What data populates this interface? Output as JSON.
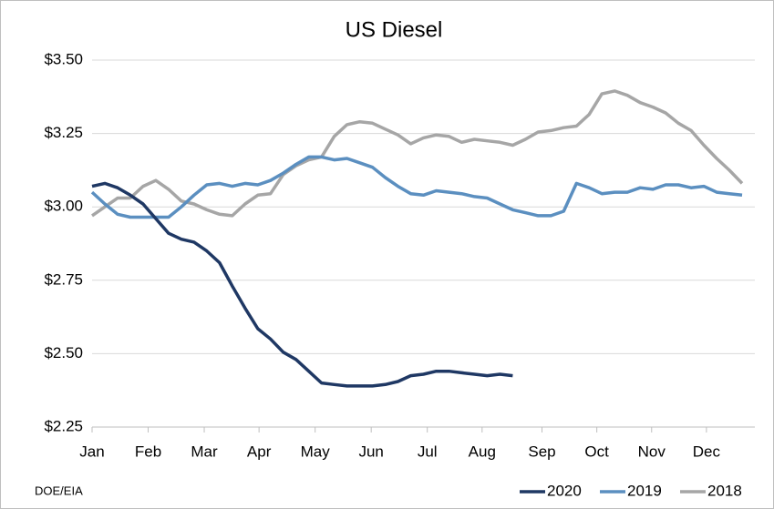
{
  "chart_data": {
    "type": "line",
    "title": "US Diesel",
    "source": "DOE/EIA",
    "x": [
      0,
      1,
      2,
      3,
      4,
      5,
      6,
      7,
      8,
      9,
      10,
      11,
      12,
      13,
      14,
      15,
      16,
      17,
      18,
      19,
      20,
      21,
      22,
      23,
      24,
      25,
      26,
      27,
      28,
      29,
      30,
      31,
      32,
      33,
      34,
      35,
      36,
      37,
      38,
      39,
      40,
      41,
      42,
      43,
      44,
      45,
      46,
      47,
      48,
      49,
      50,
      51
    ],
    "xlim": [
      0,
      52
    ],
    "xticks": [
      {
        "value": 0,
        "label": "Jan"
      },
      {
        "value": 4.4,
        "label": "Feb"
      },
      {
        "value": 8.8,
        "label": "Mar"
      },
      {
        "value": 13.1,
        "label": "Apr"
      },
      {
        "value": 17.5,
        "label": "May"
      },
      {
        "value": 21.9,
        "label": "Jun"
      },
      {
        "value": 26.3,
        "label": "Jul"
      },
      {
        "value": 30.6,
        "label": "Aug"
      },
      {
        "value": 35.3,
        "label": "Sep"
      },
      {
        "value": 39.6,
        "label": "Oct"
      },
      {
        "value": 43.9,
        "label": "Nov"
      },
      {
        "value": 48.2,
        "label": "Dec"
      }
    ],
    "ylim": [
      2.25,
      3.5
    ],
    "yticks": [
      {
        "value": 2.25,
        "label": "$2.25"
      },
      {
        "value": 2.5,
        "label": "$2.50"
      },
      {
        "value": 2.75,
        "label": "$2.75"
      },
      {
        "value": 3.0,
        "label": "$3.00"
      },
      {
        "value": 3.25,
        "label": "$3.25"
      },
      {
        "value": 3.5,
        "label": "$3.50"
      }
    ],
    "grid": true,
    "legend": "bottom-right",
    "series": [
      {
        "name": "2020",
        "color": "#1f3864",
        "values": [
          3.07,
          3.08,
          3.065,
          3.04,
          3.01,
          2.96,
          2.91,
          2.89,
          2.88,
          2.85,
          2.81,
          2.73,
          2.655,
          2.585,
          2.55,
          2.505,
          2.48,
          2.44,
          2.4,
          2.395,
          2.39,
          2.39,
          2.39,
          2.395,
          2.405,
          2.425,
          2.43,
          2.44,
          2.44,
          2.435,
          2.43,
          2.425,
          2.43,
          2.425,
          null,
          null,
          null,
          null,
          null,
          null,
          null,
          null,
          null,
          null,
          null,
          null,
          null,
          null,
          null,
          null,
          null,
          null
        ]
      },
      {
        "name": "2019",
        "color": "#5b8fc0",
        "values": [
          3.05,
          3.01,
          2.975,
          2.965,
          2.965,
          2.965,
          2.965,
          3.0,
          3.04,
          3.075,
          3.08,
          3.07,
          3.08,
          3.075,
          3.09,
          3.115,
          3.145,
          3.17,
          3.17,
          3.16,
          3.165,
          3.15,
          3.135,
          3.1,
          3.07,
          3.045,
          3.04,
          3.055,
          3.05,
          3.045,
          3.035,
          3.03,
          3.01,
          2.99,
          2.98,
          2.97,
          2.97,
          2.985,
          3.08,
          3.065,
          3.045,
          3.05,
          3.05,
          3.065,
          3.06,
          3.075,
          3.075,
          3.065,
          3.07,
          3.05,
          3.045,
          3.04
        ]
      },
      {
        "name": "2018",
        "color": "#a6a6a6",
        "values": [
          2.97,
          3.0,
          3.03,
          3.03,
          3.07,
          3.09,
          3.06,
          3.02,
          3.01,
          2.99,
          2.975,
          2.97,
          3.01,
          3.04,
          3.045,
          3.11,
          3.14,
          3.16,
          3.17,
          3.24,
          3.28,
          3.29,
          3.285,
          3.265,
          3.245,
          3.215,
          3.235,
          3.245,
          3.24,
          3.22,
          3.23,
          3.225,
          3.22,
          3.21,
          3.23,
          3.255,
          3.26,
          3.27,
          3.275,
          3.315,
          3.385,
          3.395,
          3.38,
          3.355,
          3.34,
          3.32,
          3.285,
          3.26,
          3.21,
          3.165,
          3.125,
          3.08
        ]
      }
    ]
  }
}
